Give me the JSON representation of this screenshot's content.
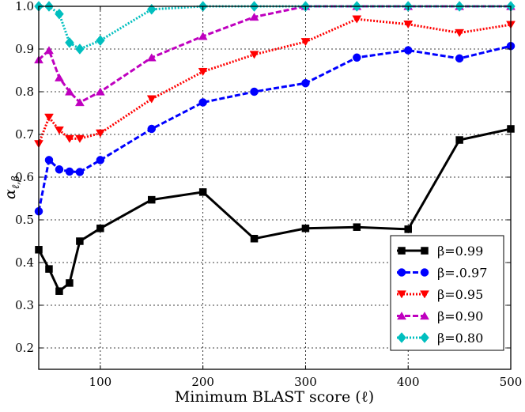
{
  "chart_data": {
    "type": "line",
    "title": "",
    "xlabel": "Minimum BLAST score (ℓ)",
    "ylabel_symbol": "α",
    "ylabel_subscript": "ℓ,β",
    "xlim": [
      40,
      500
    ],
    "ylim": [
      0.15,
      1.0
    ],
    "x_ticks": [
      100,
      200,
      300,
      400,
      500
    ],
    "x_tick_labels": [
      "100",
      "200",
      "300",
      "400",
      "500"
    ],
    "y_ticks": [
      0.2,
      0.3,
      0.4,
      0.5,
      0.6,
      0.7,
      0.8,
      0.9,
      1.0
    ],
    "y_tick_labels": [
      "0.2",
      "0.3",
      "0.4",
      "0.5",
      "0.6",
      "0.7",
      "0.8",
      "0.9",
      "1.0"
    ],
    "grid": true,
    "legend_position": "bottom-right",
    "x": [
      40,
      50,
      60,
      70,
      80,
      100,
      150,
      200,
      250,
      300,
      350,
      400,
      450,
      500
    ],
    "series": [
      {
        "name": "β=0.99",
        "color": "#000000",
        "style": "solid",
        "marker": "square",
        "values": [
          0.43,
          0.385,
          0.333,
          0.352,
          0.45,
          0.48,
          0.547,
          0.565,
          0.456,
          0.48,
          0.483,
          0.478,
          0.687,
          0.713
        ]
      },
      {
        "name": "β=.0.97",
        "color": "#0000ff",
        "style": "dashed",
        "marker": "circle",
        "values": [
          0.52,
          0.64,
          0.618,
          0.613,
          0.612,
          0.64,
          0.713,
          0.775,
          0.8,
          0.82,
          0.88,
          0.897,
          0.878,
          0.907
        ]
      },
      {
        "name": "β=0.95",
        "color": "#ff0000",
        "style": "dotted",
        "marker": "triangle-down",
        "values": [
          0.678,
          0.74,
          0.71,
          0.69,
          0.69,
          0.703,
          0.783,
          0.847,
          0.887,
          0.917,
          0.97,
          0.958,
          0.938,
          0.957
        ]
      },
      {
        "name": "β=0.90",
        "color": "#bf00bf",
        "style": "dashed",
        "marker": "triangle-up",
        "values": [
          0.875,
          0.897,
          0.833,
          0.8,
          0.775,
          0.8,
          0.88,
          0.93,
          0.975,
          1.0,
          1.0,
          1.0,
          1.0,
          1.0
        ]
      },
      {
        "name": "β=0.80",
        "color": "#00bfbf",
        "style": "dotted",
        "marker": "diamond",
        "values": [
          1.0,
          1.0,
          0.982,
          0.915,
          0.9,
          0.92,
          0.993,
          1.0,
          1.0,
          1.0,
          1.0,
          1.0,
          1.0,
          1.0
        ]
      }
    ]
  }
}
